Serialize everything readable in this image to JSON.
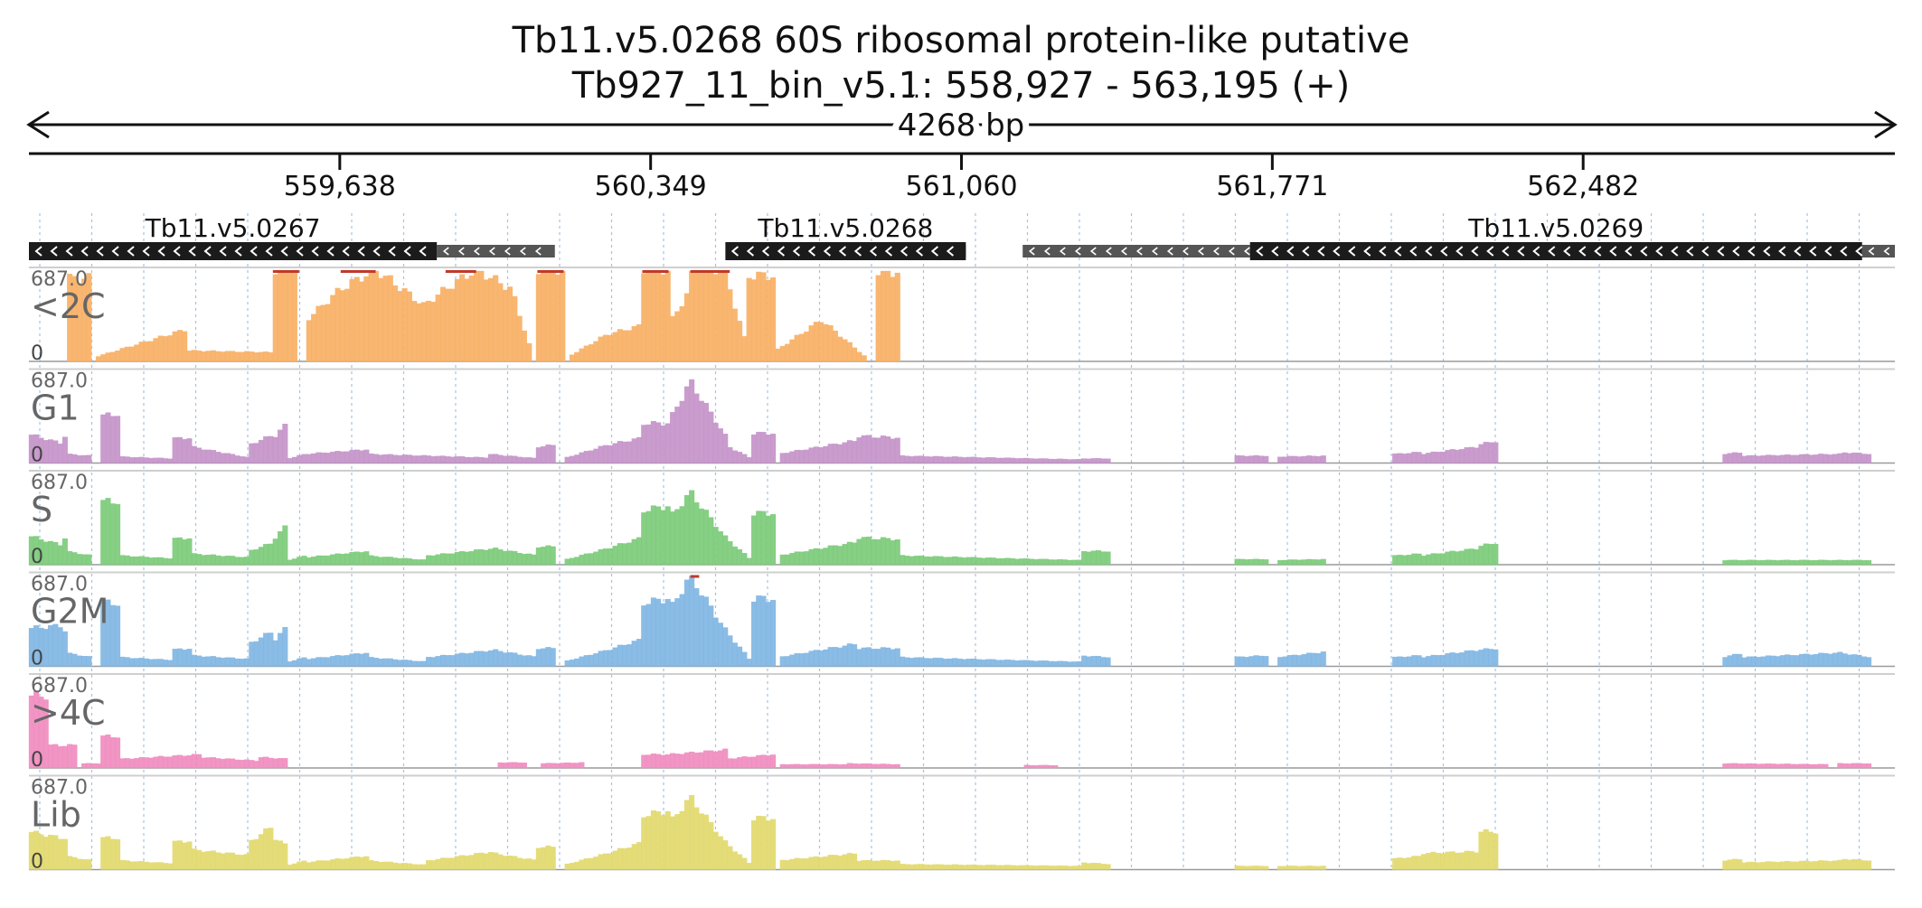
{
  "figure": {
    "title_line1": "Tb11.v5.0268  60S ribosomal protein-like  putative",
    "title_line2": "Tb927_11_bin_v5.1: 558,927 - 563,195 (+)",
    "span_label": "4268 bp"
  },
  "colors": {
    "<2C": "#f7b065",
    "G1": "#c494c9",
    "S": "#7ccb7a",
    "G2M": "#80b6e3",
    ">4C": "#f08cbf",
    "Lib": "#e2d96e",
    "gene_box": "#1b1b1b",
    "utr_box": "#555555",
    "grid": "#9bbde0"
  },
  "chart_data": {
    "type": "bar",
    "region": {
      "chrom": "Tb927_11_bin_v5.1",
      "start": 558927,
      "end": 563195,
      "strand": "+"
    },
    "ticks": [
      {
        "value": 559638,
        "label": "559,638"
      },
      {
        "value": 560349,
        "label": "560,349"
      },
      {
        "value": 561060,
        "label": "561,060"
      },
      {
        "value": 561771,
        "label": "561,771"
      },
      {
        "value": 562482,
        "label": "562,482"
      }
    ],
    "genes": [
      {
        "name": "Tb11.v5.0267",
        "strand": "-",
        "cds": [
          558927,
          559860
        ],
        "utr": [
          [
            559860,
            560130
          ]
        ]
      },
      {
        "name": "Tb11.v5.0268",
        "strand": "-",
        "cds": [
          560520,
          561070
        ],
        "utr": [
          [
            561070,
            561030
          ]
        ]
      },
      {
        "name": "Tb11.v5.0269",
        "strand": "-",
        "cds": [
          561720,
          563120
        ],
        "utr": [
          [
            561200,
            561720
          ],
          [
            563120,
            563195
          ]
        ]
      }
    ],
    "tracks": [
      {
        "name": "<2C",
        "max_label": "687.0",
        "min_label": "0",
        "ymax": 687
      },
      {
        "name": "G1",
        "max_label": "687.0",
        "min_label": "0",
        "ymax": 687
      },
      {
        "name": "S",
        "max_label": "687.0",
        "min_label": "0",
        "ymax": 687
      },
      {
        "name": "G2M",
        "max_label": "687.0",
        "min_label": "0",
        "ymax": 687
      },
      {
        "name": ">4C",
        "max_label": "687.0",
        "min_label": "0",
        "ymax": 687
      },
      {
        "name": "Lib",
        "max_label": "687.0",
        "min_label": "0",
        "ymax": 687
      }
    ],
    "features": {
      "<2C": [
        [
          559010,
          559070,
          0.92,
          0.92
        ],
        [
          559080,
          559290,
          0.05,
          0.36
        ],
        [
          559290,
          559480,
          0.12,
          0.1
        ],
        [
          559480,
          559530,
          0.08,
          0.04
        ],
        [
          559480,
          559540,
          0.06,
          0.05
        ],
        [
          559485,
          559545,
          1.02,
          1.02
        ],
        [
          559560,
          559640,
          0.45,
          0.8
        ],
        [
          559640,
          559720,
          0.8,
          1.02
        ],
        [
          559720,
          559830,
          1.02,
          0.62
        ],
        [
          559830,
          559880,
          0.62,
          0.8
        ],
        [
          559880,
          559950,
          0.8,
          1.02
        ],
        [
          559950,
          560030,
          1.02,
          0.8
        ],
        [
          560030,
          560080,
          0.8,
          0.05
        ],
        [
          560090,
          560150,
          1.02,
          1.02
        ],
        [
          560160,
          560250,
          0.05,
          0.3
        ],
        [
          560250,
          560330,
          0.3,
          0.4
        ],
        [
          560330,
          560390,
          1.02,
          1.02
        ],
        [
          560390,
          560440,
          0.4,
          0.8
        ],
        [
          560440,
          560530,
          1.02,
          1.02
        ],
        [
          560530,
          560570,
          0.8,
          0.15
        ],
        [
          560570,
          560630,
          0.95,
          0.95
        ],
        [
          560630,
          560740,
          0.1,
          0.46
        ],
        [
          560740,
          560840,
          0.46,
          0.05
        ],
        [
          560860,
          560920,
          0.99,
          0.99
        ]
      ],
      "G1": [
        [
          558927,
          559000,
          0.32,
          0.22
        ],
        [
          559000,
          559010,
          0.3,
          0.3
        ],
        [
          559010,
          559070,
          0.1,
          0.08
        ],
        [
          559090,
          559140,
          0.52,
          0.55
        ],
        [
          559140,
          559250,
          0.07,
          0.05
        ],
        [
          559250,
          559300,
          0.27,
          0.28
        ],
        [
          559300,
          559430,
          0.18,
          0.06
        ],
        [
          559430,
          559490,
          0.2,
          0.32
        ],
        [
          559490,
          559520,
          0.3,
          0.45
        ],
        [
          559520,
          559560,
          0.05,
          0.1
        ],
        [
          559560,
          559700,
          0.1,
          0.15
        ],
        [
          559700,
          559980,
          0.1,
          0.06
        ],
        [
          559980,
          560090,
          0.1,
          0.05
        ],
        [
          560090,
          560130,
          0.18,
          0.2
        ],
        [
          560150,
          560250,
          0.05,
          0.2
        ],
        [
          560250,
          560330,
          0.2,
          0.28
        ],
        [
          560330,
          560390,
          0.44,
          0.44
        ],
        [
          560390,
          560440,
          0.45,
          0.9
        ],
        [
          560440,
          560520,
          0.9,
          0.3
        ],
        [
          560520,
          560580,
          0.2,
          0.05
        ],
        [
          560580,
          560630,
          0.33,
          0.33
        ],
        [
          560640,
          560820,
          0.1,
          0.25
        ],
        [
          560820,
          560920,
          0.3,
          0.28
        ],
        [
          560920,
          561330,
          0.08,
          0.04
        ],
        [
          561330,
          561400,
          0.05,
          0.05
        ],
        [
          561680,
          561760,
          0.08,
          0.08
        ],
        [
          561780,
          561890,
          0.07,
          0.08
        ],
        [
          562050,
          562110,
          0.1,
          0.12
        ],
        [
          562110,
          562240,
          0.1,
          0.18
        ],
        [
          562240,
          562290,
          0.2,
          0.25
        ],
        [
          562800,
          562850,
          0.1,
          0.12
        ],
        [
          562850,
          563070,
          0.08,
          0.1
        ],
        [
          563070,
          563140,
          0.12,
          0.1
        ]
      ],
      "S": [
        [
          558927,
          559000,
          0.32,
          0.22
        ],
        [
          559000,
          559010,
          0.3,
          0.3
        ],
        [
          559010,
          559070,
          0.15,
          0.1
        ],
        [
          559090,
          559140,
          0.7,
          0.7
        ],
        [
          559140,
          559250,
          0.1,
          0.07
        ],
        [
          559250,
          559300,
          0.28,
          0.3
        ],
        [
          559300,
          559430,
          0.12,
          0.08
        ],
        [
          559430,
          559490,
          0.15,
          0.25
        ],
        [
          559490,
          559520,
          0.3,
          0.45
        ],
        [
          559520,
          559560,
          0.05,
          0.1
        ],
        [
          559560,
          559700,
          0.08,
          0.15
        ],
        [
          559700,
          559840,
          0.1,
          0.05
        ],
        [
          559840,
          559990,
          0.1,
          0.18
        ],
        [
          559990,
          560090,
          0.18,
          0.1
        ],
        [
          560090,
          560130,
          0.2,
          0.2
        ],
        [
          560150,
          560250,
          0.05,
          0.18
        ],
        [
          560250,
          560330,
          0.18,
          0.3
        ],
        [
          560330,
          560390,
          0.6,
          0.65
        ],
        [
          560390,
          560440,
          0.5,
          0.8
        ],
        [
          560440,
          560520,
          0.8,
          0.3
        ],
        [
          560520,
          560580,
          0.3,
          0.05
        ],
        [
          560580,
          560630,
          0.57,
          0.57
        ],
        [
          560640,
          560820,
          0.1,
          0.25
        ],
        [
          560820,
          560920,
          0.3,
          0.28
        ],
        [
          560920,
          561330,
          0.1,
          0.05
        ],
        [
          561330,
          561400,
          0.15,
          0.15
        ],
        [
          561680,
          561760,
          0.06,
          0.06
        ],
        [
          561780,
          561890,
          0.05,
          0.06
        ],
        [
          562050,
          562110,
          0.1,
          0.12
        ],
        [
          562110,
          562240,
          0.1,
          0.18
        ],
        [
          562240,
          562290,
          0.2,
          0.25
        ],
        [
          562800,
          562850,
          0.05,
          0.05
        ],
        [
          562850,
          563070,
          0.05,
          0.05
        ],
        [
          563070,
          563140,
          0.05,
          0.05
        ]
      ],
      "G2M": [
        [
          558927,
          559000,
          0.42,
          0.45
        ],
        [
          559000,
          559010,
          0.4,
          0.4
        ],
        [
          559010,
          559070,
          0.15,
          0.1
        ],
        [
          559090,
          559140,
          0.7,
          0.7
        ],
        [
          559140,
          559250,
          0.1,
          0.07
        ],
        [
          559250,
          559300,
          0.18,
          0.2
        ],
        [
          559300,
          559430,
          0.12,
          0.08
        ],
        [
          559430,
          559490,
          0.25,
          0.4
        ],
        [
          559490,
          559520,
          0.3,
          0.45
        ],
        [
          559520,
          559560,
          0.05,
          0.1
        ],
        [
          559560,
          559700,
          0.08,
          0.15
        ],
        [
          559700,
          559840,
          0.1,
          0.05
        ],
        [
          559840,
          559990,
          0.1,
          0.18
        ],
        [
          559990,
          560090,
          0.18,
          0.1
        ],
        [
          560090,
          560130,
          0.2,
          0.2
        ],
        [
          560150,
          560250,
          0.05,
          0.18
        ],
        [
          560250,
          560330,
          0.18,
          0.3
        ],
        [
          560330,
          560390,
          0.7,
          0.75
        ],
        [
          560390,
          560440,
          0.6,
          1.0
        ],
        [
          560440,
          560520,
          1.0,
          0.4
        ],
        [
          560520,
          560580,
          0.4,
          0.05
        ],
        [
          560580,
          560630,
          0.75,
          0.75
        ],
        [
          560640,
          560820,
          0.1,
          0.25
        ],
        [
          560820,
          560920,
          0.2,
          0.2
        ],
        [
          560920,
          561330,
          0.1,
          0.05
        ],
        [
          561330,
          561400,
          0.12,
          0.1
        ],
        [
          561680,
          561760,
          0.1,
          0.12
        ],
        [
          561780,
          561890,
          0.1,
          0.16
        ],
        [
          562050,
          562110,
          0.1,
          0.12
        ],
        [
          562110,
          562240,
          0.1,
          0.18
        ],
        [
          562240,
          562290,
          0.18,
          0.2
        ],
        [
          562800,
          562850,
          0.1,
          0.15
        ],
        [
          562850,
          563070,
          0.1,
          0.15
        ],
        [
          563070,
          563140,
          0.15,
          0.1
        ]
      ],
      ">4C": [
        [
          558930,
          558970,
          0.8,
          0.8
        ],
        [
          558970,
          559040,
          0.25,
          0.25
        ],
        [
          559050,
          559090,
          0.05,
          0.05
        ],
        [
          559090,
          559140,
          0.35,
          0.35
        ],
        [
          559140,
          559320,
          0.1,
          0.15
        ],
        [
          559320,
          559450,
          0.12,
          0.08
        ],
        [
          559450,
          559520,
          0.12,
          0.1
        ],
        [
          560000,
          560070,
          0.06,
          0.06
        ],
        [
          560100,
          560200,
          0.05,
          0.06
        ],
        [
          560330,
          560390,
          0.15,
          0.15
        ],
        [
          560390,
          560520,
          0.15,
          0.2
        ],
        [
          560520,
          560630,
          0.1,
          0.15
        ],
        [
          560640,
          560800,
          0.04,
          0.04
        ],
        [
          560800,
          560920,
          0.05,
          0.04
        ],
        [
          561200,
          561280,
          0.03,
          0.03
        ],
        [
          562800,
          563040,
          0.05,
          0.04
        ],
        [
          563060,
          563140,
          0.05,
          0.05
        ]
      ],
      "Lib": [
        [
          558927,
          559000,
          0.42,
          0.35
        ],
        [
          559000,
          559010,
          0.35,
          0.35
        ],
        [
          559010,
          559070,
          0.15,
          0.1
        ],
        [
          559090,
          559140,
          0.35,
          0.35
        ],
        [
          559140,
          559250,
          0.1,
          0.07
        ],
        [
          559250,
          559300,
          0.3,
          0.32
        ],
        [
          559300,
          559430,
          0.22,
          0.16
        ],
        [
          559430,
          559490,
          0.3,
          0.5
        ],
        [
          559490,
          559520,
          0.35,
          0.25
        ],
        [
          559520,
          559560,
          0.05,
          0.1
        ],
        [
          559560,
          559700,
          0.08,
          0.15
        ],
        [
          559700,
          559840,
          0.1,
          0.05
        ],
        [
          559840,
          559990,
          0.1,
          0.2
        ],
        [
          559990,
          560090,
          0.18,
          0.1
        ],
        [
          560090,
          560130,
          0.25,
          0.25
        ],
        [
          560150,
          560250,
          0.05,
          0.18
        ],
        [
          560250,
          560330,
          0.18,
          0.3
        ],
        [
          560330,
          560390,
          0.6,
          0.65
        ],
        [
          560390,
          560440,
          0.5,
          0.8
        ],
        [
          560440,
          560520,
          0.8,
          0.3
        ],
        [
          560520,
          560580,
          0.3,
          0.05
        ],
        [
          560580,
          560630,
          0.57,
          0.57
        ],
        [
          560640,
          560820,
          0.1,
          0.18
        ],
        [
          560820,
          560920,
          0.1,
          0.1
        ],
        [
          560920,
          561330,
          0.06,
          0.04
        ],
        [
          561330,
          561400,
          0.08,
          0.06
        ],
        [
          561680,
          561760,
          0.04,
          0.04
        ],
        [
          561780,
          561890,
          0.04,
          0.04
        ],
        [
          562050,
          562110,
          0.12,
          0.15
        ],
        [
          562110,
          562240,
          0.18,
          0.2
        ],
        [
          562240,
          562290,
          0.42,
          0.42
        ],
        [
          562800,
          562850,
          0.1,
          0.12
        ],
        [
          562850,
          563070,
          0.08,
          0.1
        ],
        [
          563070,
          563140,
          0.12,
          0.1
        ]
      ]
    },
    "clipped_marks": {
      "<2C": [
        559485,
        559545,
        559640,
        559720,
        559880,
        559950,
        560090,
        560150,
        560330,
        560390,
        560440,
        560530
      ],
      "G1": [],
      "S": [],
      "G2M": [
        560440,
        560460
      ],
      ">4C": [],
      "Lib": []
    }
  }
}
